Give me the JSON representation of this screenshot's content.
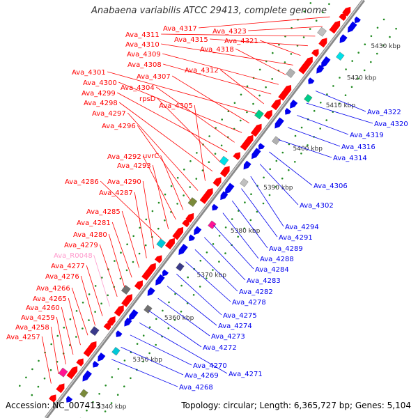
{
  "title": "Anabaena variabilis ATCC 29413, complete genome",
  "accession_text": "Accession: NC_007413",
  "summary_text": "Topology: circular; Length: 6,365,727 bp; Genes: 5,104",
  "colors": {
    "forward": "#ff0000",
    "reverse": "#0000ee",
    "rna": "#ff99cc",
    "backbone": "#888888",
    "tick": "#228b22"
  },
  "scale_labels": [
    "5340 kbp",
    "5350 kbp",
    "5360 kbp",
    "5370 kbp",
    "5380 kbp",
    "5390 kbp",
    "5400 kbp",
    "5410 kbp",
    "5420 kbp",
    "5430 kbp"
  ],
  "left_labels": [
    {
      "text": "Ava_4317",
      "type": "forward"
    },
    {
      "text": "Ava_4323",
      "type": "forward"
    },
    {
      "text": "Ava_4311",
      "type": "forward"
    },
    {
      "text": "Ava_4315",
      "type": "forward"
    },
    {
      "text": "Ava_4321",
      "type": "forward"
    },
    {
      "text": "Ava_4310",
      "type": "forward"
    },
    {
      "text": "Ava_4318",
      "type": "forward"
    },
    {
      "text": "Ava_4309",
      "type": "forward"
    },
    {
      "text": "Ava_4308",
      "type": "forward"
    },
    {
      "text": "Ava_4312",
      "type": "forward"
    },
    {
      "text": "Ava_4301",
      "type": "forward"
    },
    {
      "text": "Ava_4307",
      "type": "forward"
    },
    {
      "text": "Ava_4300",
      "type": "forward"
    },
    {
      "text": "Ava_4304",
      "type": "forward"
    },
    {
      "text": "Ava_4299",
      "type": "forward"
    },
    {
      "text": "rpsD",
      "type": "forward"
    },
    {
      "text": "Ava_4298",
      "type": "forward"
    },
    {
      "text": "Ava_4305",
      "type": "forward"
    },
    {
      "text": "Ava_4297",
      "type": "forward"
    },
    {
      "text": "Ava_4296",
      "type": "forward"
    },
    {
      "text": "uvrC",
      "type": "forward"
    },
    {
      "text": "Ava_4292",
      "type": "forward"
    },
    {
      "text": "Ava_4293",
      "type": "forward"
    },
    {
      "text": "Ava_4286",
      "type": "forward"
    },
    {
      "text": "Ava_4290",
      "type": "forward"
    },
    {
      "text": "Ava_4287",
      "type": "forward"
    },
    {
      "text": "Ava_4285",
      "type": "forward"
    },
    {
      "text": "Ava_4281",
      "type": "forward"
    },
    {
      "text": "Ava_4280",
      "type": "forward"
    },
    {
      "text": "Ava_4279",
      "type": "forward"
    },
    {
      "text": "Ava_R0048",
      "type": "rna"
    },
    {
      "text": "Ava_4277",
      "type": "forward"
    },
    {
      "text": "Ava_4276",
      "type": "forward"
    },
    {
      "text": "Ava_4266",
      "type": "forward"
    },
    {
      "text": "Ava_4265",
      "type": "forward"
    },
    {
      "text": "Ava_4260",
      "type": "forward"
    },
    {
      "text": "Ava_4259",
      "type": "forward"
    },
    {
      "text": "Ava_4258",
      "type": "forward"
    },
    {
      "text": "Ava_4257",
      "type": "forward"
    }
  ],
  "right_labels": [
    {
      "text": "Ava_4322",
      "type": "reverse"
    },
    {
      "text": "Ava_4320",
      "type": "reverse"
    },
    {
      "text": "Ava_4319",
      "type": "reverse"
    },
    {
      "text": "Ava_4316",
      "type": "reverse"
    },
    {
      "text": "Ava_4314",
      "type": "reverse"
    },
    {
      "text": "Ava_4306",
      "type": "reverse"
    },
    {
      "text": "Ava_4302",
      "type": "reverse"
    },
    {
      "text": "Ava_4294",
      "type": "reverse"
    },
    {
      "text": "Ava_4291",
      "type": "reverse"
    },
    {
      "text": "Ava_4289",
      "type": "reverse"
    },
    {
      "text": "Ava_4288",
      "type": "reverse"
    },
    {
      "text": "Ava_4284",
      "type": "reverse"
    },
    {
      "text": "Ava_4283",
      "type": "reverse"
    },
    {
      "text": "Ava_4282",
      "type": "reverse"
    },
    {
      "text": "Ava_4278",
      "type": "reverse"
    },
    {
      "text": "Ava_4275",
      "type": "reverse"
    },
    {
      "text": "Ava_4274",
      "type": "reverse"
    },
    {
      "text": "Ava_4273",
      "type": "reverse"
    },
    {
      "text": "Ava_4272",
      "type": "reverse"
    },
    {
      "text": "Ava_4271",
      "type": "reverse"
    },
    {
      "text": "Ava_4270",
      "type": "reverse"
    },
    {
      "text": "Ava_4269",
      "type": "reverse"
    },
    {
      "text": "Ava_4268",
      "type": "reverse"
    }
  ]
}
